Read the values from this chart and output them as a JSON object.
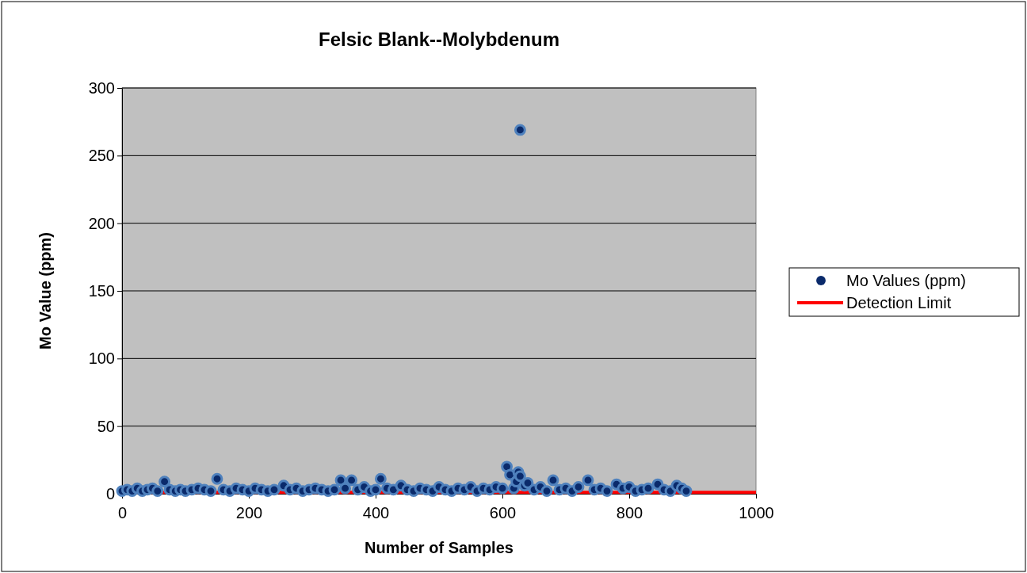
{
  "chart_data": {
    "type": "scatter",
    "title": "Felsic Blank--Molybdenum",
    "xlabel": "Number of Samples",
    "ylabel": "Mo Value (ppm)",
    "xlim": [
      0,
      1000
    ],
    "xticks": [
      0,
      200,
      400,
      600,
      800,
      1000
    ],
    "ylim": [
      0,
      300
    ],
    "yticks": [
      0,
      50,
      100,
      150,
      200,
      250,
      300
    ],
    "grid": "y",
    "legend": "right",
    "series": [
      {
        "name": "Mo Values (ppm)",
        "marker": "circle",
        "color": "#0a2a6b",
        "x": [
          0,
          8,
          16,
          24,
          32,
          40,
          48,
          56,
          67,
          75,
          84,
          92,
          100,
          110,
          120,
          130,
          140,
          150,
          160,
          170,
          180,
          190,
          200,
          210,
          220,
          230,
          240,
          255,
          265,
          275,
          285,
          295,
          305,
          315,
          325,
          335,
          345,
          352,
          362,
          372,
          382,
          392,
          400,
          408,
          418,
          428,
          440,
          450,
          460,
          470,
          480,
          490,
          500,
          510,
          520,
          530,
          540,
          550,
          560,
          570,
          580,
          590,
          600,
          607,
          612,
          618,
          622,
          625,
          628,
          628,
          635,
          640,
          650,
          660,
          670,
          680,
          690,
          700,
          710,
          720,
          735,
          745,
          755,
          765,
          780,
          790,
          800,
          810,
          820,
          830,
          845,
          855,
          865,
          875,
          883,
          890
        ],
        "values": [
          2,
          3,
          2,
          4,
          2,
          3,
          4,
          2,
          9,
          3,
          2,
          3,
          2,
          3,
          4,
          3,
          2,
          11,
          3,
          2,
          4,
          3,
          2,
          4,
          3,
          2,
          3,
          6,
          3,
          4,
          2,
          3,
          4,
          3,
          2,
          3,
          10,
          4,
          10,
          3,
          5,
          2,
          3,
          11,
          4,
          3,
          6,
          3,
          2,
          4,
          3,
          2,
          5,
          3,
          2,
          4,
          3,
          5,
          2,
          4,
          3,
          5,
          4,
          20,
          14,
          4,
          9,
          16,
          13,
          269,
          6,
          8,
          3,
          5,
          2,
          10,
          3,
          4,
          2,
          5,
          10,
          3,
          4,
          2,
          7,
          4,
          5,
          2,
          3,
          4,
          7,
          3,
          2,
          6,
          4,
          2
        ]
      },
      {
        "name": "Detection Limit",
        "type": "line",
        "color": "#ff0000",
        "x": [
          0,
          1000
        ],
        "values": [
          1,
          1
        ]
      }
    ]
  }
}
